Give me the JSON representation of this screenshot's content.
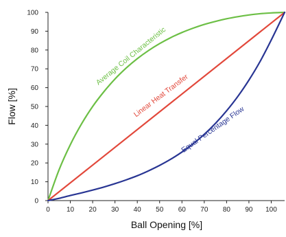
{
  "chart_data": {
    "type": "line",
    "xlabel": "Ball Opening [%]",
    "ylabel": "Flow [%]",
    "xlim": [
      0,
      106
    ],
    "ylim": [
      0,
      100
    ],
    "xticks": [
      "0",
      "10",
      "20",
      "30",
      "40",
      "50",
      "60",
      "70",
      "80",
      "90",
      "100"
    ],
    "yticks": [
      "0",
      "10",
      "20",
      "30",
      "40",
      "50",
      "60",
      "70",
      "80",
      "90",
      "100"
    ],
    "grid": false,
    "series": [
      {
        "name": "Average Coil Characteristic",
        "color": "#6cbf45",
        "x": [
          0,
          5,
          10,
          15,
          20,
          25,
          30,
          35,
          40,
          45,
          50,
          55,
          60,
          65,
          70,
          75,
          80,
          85,
          90,
          95,
          100,
          106
        ],
        "y": [
          0,
          16.5,
          29.7,
          40.7,
          50.0,
          57.8,
          64.6,
          70.4,
          75.4,
          79.7,
          83.4,
          86.6,
          89.3,
          91.6,
          93.6,
          95.2,
          96.6,
          97.7,
          98.6,
          99.3,
          99.7,
          100
        ]
      },
      {
        "name": "Linear Heat Transfer",
        "color": "#e2483b",
        "x": [
          0,
          106
        ],
        "y": [
          0,
          100
        ]
      },
      {
        "name": "Equal Percentage Flow",
        "color": "#283593",
        "x": [
          0,
          5,
          10,
          15,
          20,
          25,
          30,
          35,
          40,
          45,
          50,
          55,
          60,
          65,
          70,
          75,
          80,
          85,
          90,
          95,
          100,
          106
        ],
        "y": [
          0,
          1.2,
          2.7,
          4.1,
          5.6,
          7.2,
          9.0,
          11.0,
          13.2,
          15.8,
          18.7,
          22.0,
          25.8,
          30.2,
          35.2,
          41.0,
          47.7,
          55.3,
          64.0,
          73.9,
          85.3,
          100
        ]
      }
    ],
    "labels": [
      {
        "text": "Average Coil Characteristic",
        "series": 0,
        "color": "#6cbf45"
      },
      {
        "text": "Linear Heat Transfer",
        "series": 1,
        "color": "#e2483b"
      },
      {
        "text": "Equal Percentage Flow",
        "series": 2,
        "color": "#283593"
      }
    ]
  }
}
